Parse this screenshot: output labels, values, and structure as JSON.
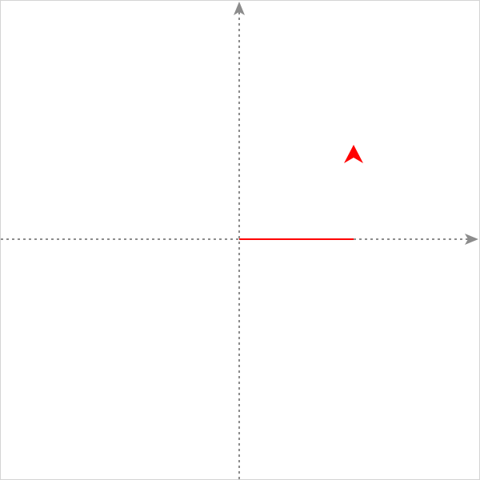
{
  "canvas": {
    "background": "#ffffff",
    "border_color": "#d4d4d4"
  },
  "axes": {
    "color": "#8c8c8c",
    "style": "dashed",
    "x_axis_arrow_icon": "arrow-right-icon",
    "y_axis_arrow_icon": "arrow-up-icon"
  },
  "turtle": {
    "color": "#ff0000",
    "icon": "arrowhead-cursor-icon",
    "heading": "up",
    "trail": {
      "color": "#ff0000",
      "from": "origin",
      "direction": "right"
    }
  }
}
